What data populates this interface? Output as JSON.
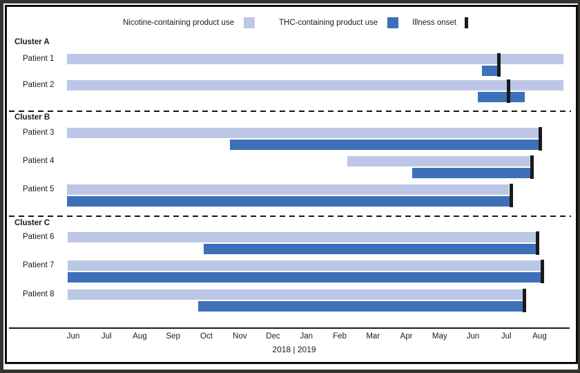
{
  "legend": {
    "items": [
      {
        "label": "Nicotine-containing product use",
        "swatch": "nicotine",
        "color": "#bcc7e7"
      },
      {
        "label": "THC-containing product use",
        "swatch": "thc",
        "color": "#3d70b8"
      },
      {
        "label": "Illness onset",
        "swatch": "onset",
        "color": "#1a1a1a"
      }
    ]
  },
  "chart_data": {
    "type": "timeline-bar",
    "description": "Timeline of nicotine-containing product use, THC-containing product use, and illness onset for 8 patients in 3 clusters",
    "units": "months relative to the Jun 2018 axis label (0 = Jun 2018, 14 = Aug 2019)",
    "axis": {
      "month_labels": [
        "Jun",
        "Jul",
        "Aug",
        "Sep",
        "Oct",
        "Nov",
        "Dec",
        "Jan",
        "Feb",
        "Mar",
        "Apr",
        "May",
        "Jun",
        "Jul",
        "Aug"
      ],
      "year_label": "2018 | 2019",
      "xlim": [
        -0.5,
        15.2
      ],
      "grid": false
    },
    "series_colors": {
      "nicotine": "#bcc7e7",
      "thc": "#3d70b8",
      "onset": "#1a1a1a"
    },
    "clusters": [
      {
        "label": "Cluster A",
        "patients": [
          {
            "label": "Patient 1",
            "nicotine": [
              -0.19,
              14.71
            ],
            "thc": [
              12.27,
              12.79
            ],
            "onset": 12.77
          },
          {
            "label": "Patient 2",
            "nicotine": [
              -0.19,
              14.71
            ],
            "thc": [
              12.15,
              13.55
            ],
            "onset": 13.06
          }
        ]
      },
      {
        "label": "Cluster B",
        "patients": [
          {
            "label": "Patient 3",
            "nicotine": [
              -0.19,
              14.03
            ],
            "thc": [
              4.7,
              14.03
            ],
            "onset": 14.03
          },
          {
            "label": "Patient 4",
            "nicotine": [
              8.23,
              13.76
            ],
            "thc": [
              10.18,
              13.76
            ],
            "onset": 13.78
          },
          {
            "label": "Patient 5",
            "nicotine": [
              -0.19,
              13.08
            ],
            "thc": [
              -0.19,
              13.16
            ],
            "onset": 13.14
          }
        ]
      },
      {
        "label": "Cluster C",
        "patients": [
          {
            "label": "Patient 6",
            "nicotine": [
              -0.17,
              13.91
            ],
            "thc": [
              3.92,
              13.93
            ],
            "onset": 13.93
          },
          {
            "label": "Patient 7",
            "nicotine": [
              -0.17,
              14.07
            ],
            "thc": [
              -0.17,
              14.11
            ],
            "onset": 14.09
          },
          {
            "label": "Patient 8",
            "nicotine": [
              -0.17,
              13.51
            ],
            "thc": [
              3.75,
              13.55
            ],
            "onset": 13.54
          }
        ]
      }
    ]
  }
}
